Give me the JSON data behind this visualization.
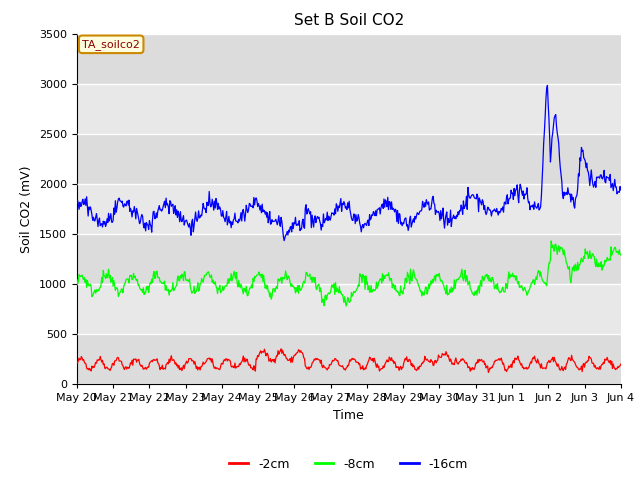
{
  "title": "Set B Soil CO2",
  "ylabel": "Soil CO2 (mV)",
  "xlabel": "Time",
  "legend_label": "TA_soilco2",
  "series_labels": [
    "-2cm",
    "-8cm",
    "-16cm"
  ],
  "series_colors": [
    "red",
    "lime",
    "blue"
  ],
  "band_colors": [
    "#e8e8e8",
    "#d0d0d0"
  ],
  "ylim": [
    0,
    3500
  ],
  "yticks": [
    0,
    500,
    1000,
    1500,
    2000,
    2500,
    3000,
    3500
  ],
  "x_labels": [
    "May 20",
    "May 21",
    "May 22",
    "May 23",
    "May 24",
    "May 25",
    "May 26",
    "May 27",
    "May 28",
    "May 29",
    "May 30",
    "May 31",
    "Jun 1",
    "Jun 2",
    "Jun 3",
    "Jun 4"
  ],
  "n_days": 16,
  "seed": 42
}
